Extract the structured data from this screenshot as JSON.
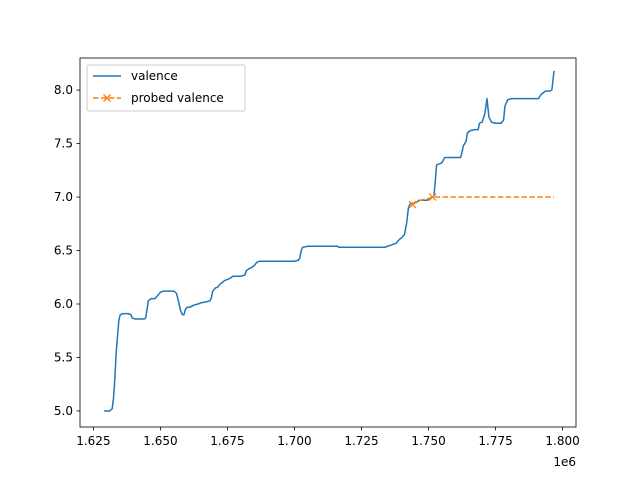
{
  "chart_data": {
    "type": "line",
    "title": "",
    "xlabel": "",
    "ylabel": "",
    "x_offset_label": "1e6",
    "xlim": [
      1620000,
      1805000
    ],
    "ylim": [
      4.85,
      8.3
    ],
    "grid": false,
    "legend_position": "top-left",
    "x_ticks": [
      {
        "value": 1625000,
        "label": "1.625"
      },
      {
        "value": 1650000,
        "label": "1.650"
      },
      {
        "value": 1675000,
        "label": "1.675"
      },
      {
        "value": 1700000,
        "label": "1.700"
      },
      {
        "value": 1725000,
        "label": "1.725"
      },
      {
        "value": 1750000,
        "label": "1.750"
      },
      {
        "value": 1775000,
        "label": "1.775"
      },
      {
        "value": 1800000,
        "label": "1.800"
      }
    ],
    "y_ticks": [
      {
        "value": 5.0,
        "label": "5.0"
      },
      {
        "value": 5.5,
        "label": "5.5"
      },
      {
        "value": 6.0,
        "label": "6.0"
      },
      {
        "value": 6.5,
        "label": "6.5"
      },
      {
        "value": 7.0,
        "label": "7.0"
      },
      {
        "value": 7.5,
        "label": "7.5"
      },
      {
        "value": 8.0,
        "label": "8.0"
      }
    ],
    "series": [
      {
        "name": "valence",
        "color": "#1f77b4",
        "style": "solid",
        "marker": "none",
        "points": [
          [
            1629000,
            5.0
          ],
          [
            1631000,
            5.0
          ],
          [
            1632000,
            5.02
          ],
          [
            1632500,
            5.12
          ],
          [
            1633000,
            5.3
          ],
          [
            1633500,
            5.55
          ],
          [
            1634000,
            5.7
          ],
          [
            1634500,
            5.85
          ],
          [
            1635000,
            5.9
          ],
          [
            1636000,
            5.91
          ],
          [
            1638000,
            5.91
          ],
          [
            1639000,
            5.9
          ],
          [
            1639500,
            5.87
          ],
          [
            1640500,
            5.86
          ],
          [
            1642000,
            5.86
          ],
          [
            1644000,
            5.86
          ],
          [
            1644500,
            5.87
          ],
          [
            1645000,
            5.95
          ],
          [
            1645500,
            6.03
          ],
          [
            1646500,
            6.05
          ],
          [
            1648000,
            6.05
          ],
          [
            1649000,
            6.08
          ],
          [
            1650000,
            6.11
          ],
          [
            1651000,
            6.12
          ],
          [
            1653000,
            6.12
          ],
          [
            1655000,
            6.12
          ],
          [
            1656000,
            6.1
          ],
          [
            1656800,
            6.02
          ],
          [
            1657500,
            5.94
          ],
          [
            1658200,
            5.9
          ],
          [
            1658800,
            5.9
          ],
          [
            1659300,
            5.95
          ],
          [
            1660000,
            5.97
          ],
          [
            1661000,
            5.97
          ],
          [
            1662500,
            5.99
          ],
          [
            1664000,
            6.0
          ],
          [
            1665000,
            6.01
          ],
          [
            1667000,
            6.02
          ],
          [
            1668500,
            6.03
          ],
          [
            1669000,
            6.06
          ],
          [
            1669500,
            6.12
          ],
          [
            1670500,
            6.15
          ],
          [
            1671500,
            6.16
          ],
          [
            1672000,
            6.18
          ],
          [
            1673000,
            6.2
          ],
          [
            1674000,
            6.22
          ],
          [
            1675000,
            6.23
          ],
          [
            1676000,
            6.24
          ],
          [
            1677000,
            6.26
          ],
          [
            1680000,
            6.26
          ],
          [
            1681500,
            6.27
          ],
          [
            1682000,
            6.31
          ],
          [
            1683000,
            6.33
          ],
          [
            1684000,
            6.34
          ],
          [
            1685000,
            6.36
          ],
          [
            1686000,
            6.39
          ],
          [
            1687000,
            6.4
          ],
          [
            1690000,
            6.4
          ],
          [
            1695000,
            6.4
          ],
          [
            1700000,
            6.4
          ],
          [
            1701500,
            6.41
          ],
          [
            1702000,
            6.43
          ],
          [
            1702500,
            6.5
          ],
          [
            1703000,
            6.53
          ],
          [
            1705000,
            6.54
          ],
          [
            1710000,
            6.54
          ],
          [
            1716000,
            6.54
          ],
          [
            1716500,
            6.53
          ],
          [
            1720000,
            6.53
          ],
          [
            1725000,
            6.53
          ],
          [
            1730000,
            6.53
          ],
          [
            1734000,
            6.53
          ],
          [
            1734500,
            6.54
          ],
          [
            1736000,
            6.55
          ],
          [
            1738000,
            6.57
          ],
          [
            1739000,
            6.6
          ],
          [
            1740000,
            6.62
          ],
          [
            1741000,
            6.65
          ],
          [
            1741800,
            6.75
          ],
          [
            1742500,
            6.9
          ],
          [
            1743200,
            6.94
          ],
          [
            1744000,
            6.94
          ],
          [
            1745500,
            6.95
          ],
          [
            1746500,
            6.97
          ],
          [
            1748000,
            6.97
          ],
          [
            1749500,
            6.97
          ],
          [
            1750500,
            6.99
          ],
          [
            1751500,
            7.0
          ],
          [
            1752000,
            7.01
          ],
          [
            1752500,
            7.14
          ],
          [
            1753000,
            7.3
          ],
          [
            1754000,
            7.31
          ],
          [
            1755000,
            7.32
          ],
          [
            1756000,
            7.37
          ],
          [
            1758000,
            7.37
          ],
          [
            1760000,
            7.37
          ],
          [
            1762000,
            7.37
          ],
          [
            1762500,
            7.42
          ],
          [
            1763000,
            7.48
          ],
          [
            1764000,
            7.52
          ],
          [
            1764500,
            7.6
          ],
          [
            1765500,
            7.62
          ],
          [
            1767000,
            7.63
          ],
          [
            1768500,
            7.63
          ],
          [
            1769000,
            7.69
          ],
          [
            1770000,
            7.7
          ],
          [
            1771000,
            7.78
          ],
          [
            1771800,
            7.92
          ],
          [
            1772500,
            7.75
          ],
          [
            1773500,
            7.7
          ],
          [
            1775000,
            7.69
          ],
          [
            1777000,
            7.69
          ],
          [
            1778000,
            7.72
          ],
          [
            1778500,
            7.85
          ],
          [
            1779500,
            7.91
          ],
          [
            1781000,
            7.92
          ],
          [
            1785000,
            7.92
          ],
          [
            1790000,
            7.92
          ],
          [
            1791000,
            7.92
          ],
          [
            1792000,
            7.96
          ],
          [
            1793500,
            7.99
          ],
          [
            1795000,
            7.99
          ],
          [
            1796000,
            8.0
          ],
          [
            1796800,
            8.18
          ]
        ]
      },
      {
        "name": "probed valence",
        "color": "#ff7f0e",
        "style": "dashed",
        "marker": "x",
        "points": [
          [
            1744000,
            6.93
          ],
          [
            1745500,
            6.95
          ],
          [
            1747000,
            6.97
          ],
          [
            1749000,
            6.98
          ],
          [
            1750500,
            6.99
          ],
          [
            1751500,
            7.0
          ],
          [
            1753000,
            7.0
          ],
          [
            1760000,
            7.0
          ],
          [
            1770000,
            7.0
          ],
          [
            1780000,
            7.0
          ],
          [
            1790000,
            7.0
          ],
          [
            1796800,
            7.0
          ]
        ],
        "marker_points": [
          [
            1744000,
            6.93
          ],
          [
            1751500,
            7.0
          ]
        ]
      }
    ]
  }
}
